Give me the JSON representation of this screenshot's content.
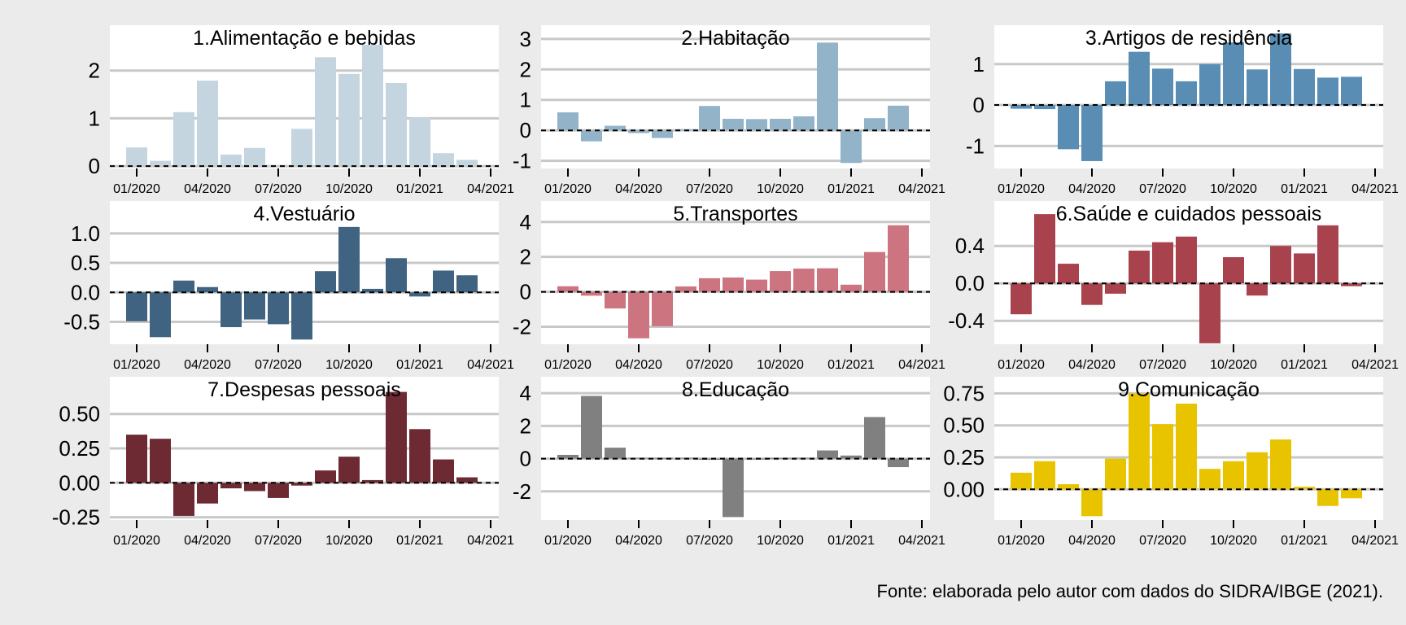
{
  "source_note": "Fonte: elaborada pelo autor com dados do SIDRA/IBGE (2021).",
  "months": [
    "01/2020",
    "02/2020",
    "03/2020",
    "04/2020",
    "05/2020",
    "06/2020",
    "07/2020",
    "08/2020",
    "09/2020",
    "10/2020",
    "11/2020",
    "12/2020",
    "01/2021",
    "02/2021",
    "03/2021"
  ],
  "x_ticks": [
    "01/2020",
    "04/2020",
    "07/2020",
    "10/2020",
    "01/2021",
    "04/2021"
  ],
  "chart_data": [
    {
      "type": "bar",
      "title": "1.Alimentação e bebidas",
      "color": "#c5d5e0",
      "ylim": [
        -0.05,
        2.95
      ],
      "yticks": [
        0,
        1,
        2
      ],
      "ytick_labels": [
        "0",
        "1",
        "2"
      ],
      "values": [
        0.39,
        0.11,
        1.13,
        1.79,
        0.24,
        0.38,
        0.01,
        0.78,
        2.28,
        1.93,
        2.54,
        1.74,
        1.02,
        0.27,
        0.13
      ]
    },
    {
      "type": "bar",
      "title": "2.Habitação",
      "color": "#93b3c9",
      "ylim": [
        -1.25,
        3.45
      ],
      "yticks": [
        -1,
        0,
        1,
        2,
        3
      ],
      "ytick_labels": [
        "-1",
        "0",
        "1",
        "2",
        "3"
      ],
      "values": [
        0.59,
        -0.36,
        0.15,
        -0.09,
        -0.25,
        0.04,
        0.8,
        0.38,
        0.37,
        0.38,
        0.46,
        2.88,
        -1.07,
        0.4,
        0.81
      ]
    },
    {
      "type": "bar",
      "title": "3.Artigos de residência",
      "color": "#5a8db3",
      "ylim": [
        -1.55,
        1.95
      ],
      "yticks": [
        -1,
        0,
        1
      ],
      "ytick_labels": [
        "-1",
        "0",
        "1"
      ],
      "values": [
        -0.09,
        -0.1,
        -1.08,
        -1.37,
        0.58,
        1.3,
        0.89,
        0.58,
        1.0,
        1.53,
        0.87,
        1.75,
        0.88,
        0.67,
        0.69
      ]
    },
    {
      "type": "bar",
      "title": "4.Vestuário",
      "color": "#3f6380",
      "ylim": [
        -0.88,
        1.55
      ],
      "yticks": [
        -0.5,
        0,
        0.5,
        1.0
      ],
      "ytick_labels": [
        "-0.5",
        "0.0",
        "0.5",
        "1.0"
      ],
      "values": [
        -0.49,
        -0.76,
        0.2,
        0.09,
        -0.59,
        -0.46,
        -0.54,
        -0.8,
        0.36,
        1.11,
        0.06,
        0.58,
        -0.07,
        0.37,
        0.29
      ]
    },
    {
      "type": "bar",
      "title": "5.Transportes",
      "color": "#cc7480",
      "ylim": [
        -3.0,
        5.2
      ],
      "yticks": [
        -2,
        0,
        2,
        4
      ],
      "ytick_labels": [
        "-2",
        "0",
        "2",
        "4"
      ],
      "values": [
        0.32,
        -0.22,
        -0.95,
        -2.66,
        -1.97,
        0.31,
        0.78,
        0.82,
        0.7,
        1.19,
        1.33,
        1.35,
        0.41,
        2.28,
        3.81
      ]
    },
    {
      "type": "bar",
      "title": "6.Saúde e cuidados pessoais",
      "color": "#a8434e",
      "ylim": [
        -0.65,
        0.88
      ],
      "yticks": [
        -0.4,
        0,
        0.4
      ],
      "ytick_labels": [
        "-0.4",
        "0.0",
        "0.4"
      ],
      "values": [
        -0.33,
        0.74,
        0.21,
        -0.23,
        -0.11,
        0.35,
        0.44,
        0.5,
        -0.64,
        0.28,
        -0.13,
        0.4,
        0.32,
        0.62,
        -0.03
      ]
    },
    {
      "type": "bar",
      "title": "7.Despesas pessoais",
      "color": "#6e2a33",
      "ylim": [
        -0.27,
        0.77
      ],
      "yticks": [
        -0.25,
        0,
        0.25,
        0.5
      ],
      "ytick_labels": [
        "-0.25",
        "0.00",
        "0.25",
        "0.50"
      ],
      "values": [
        0.35,
        0.32,
        -0.24,
        -0.15,
        -0.04,
        -0.06,
        -0.11,
        -0.02,
        0.09,
        0.19,
        0.02,
        0.66,
        0.39,
        0.17,
        0.04
      ]
    },
    {
      "type": "bar",
      "title": "8.Educação",
      "color": "#808080",
      "ylim": [
        -3.75,
        5.0
      ],
      "yticks": [
        -2,
        0,
        2,
        4
      ],
      "ytick_labels": [
        "-2",
        "0",
        "2",
        "4"
      ],
      "values": [
        0.23,
        3.83,
        0.67,
        0.05,
        0.04,
        0.05,
        -0.07,
        -3.57,
        -0.03,
        0.04,
        0.05,
        0.5,
        0.19,
        2.54,
        -0.52
      ]
    },
    {
      "type": "bar",
      "title": "9.Comunicação",
      "color": "#e8c400",
      "ylim": [
        -0.24,
        0.88
      ],
      "yticks": [
        0,
        0.25,
        0.5,
        0.75
      ],
      "ytick_labels": [
        "0.00",
        "0.25",
        "0.50",
        "0.75"
      ],
      "values": [
        0.13,
        0.22,
        0.04,
        -0.21,
        0.24,
        0.75,
        0.51,
        0.67,
        0.16,
        0.22,
        0.29,
        0.39,
        0.02,
        -0.13,
        -0.07
      ]
    }
  ]
}
